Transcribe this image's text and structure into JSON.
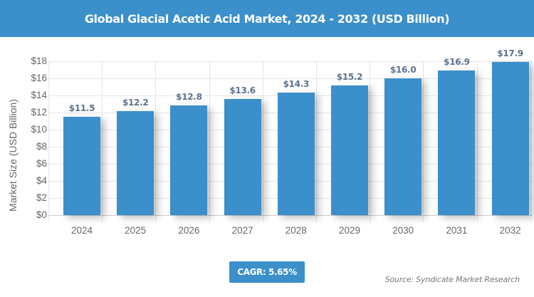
{
  "header": {
    "title": "Global Glacial Acetic Acid Market, 2024 - 2032 (USD Billion)"
  },
  "chart_data": {
    "type": "bar",
    "title": "Global Glacial Acetic Acid Market, 2024 - 2032 (USD Billion)",
    "xlabel": "",
    "ylabel": "Market Size (USD Billion)",
    "categories": [
      "2024",
      "2025",
      "2026",
      "2027",
      "2028",
      "2029",
      "2030",
      "2031",
      "2032"
    ],
    "values": [
      11.5,
      12.2,
      12.8,
      13.6,
      14.3,
      15.2,
      16.0,
      16.9,
      17.9
    ],
    "value_labels": [
      "$11.5",
      "$12.2",
      "$12.8",
      "$13.6",
      "$14.3",
      "$15.2",
      "$16.0",
      "$16.9",
      "$17.9"
    ],
    "ylim": [
      0,
      18
    ],
    "yticks": [
      "$0",
      "$2",
      "$4",
      "$6",
      "$8",
      "$10",
      "$12",
      "$14",
      "$16",
      "$18"
    ],
    "grid": true,
    "legend": null,
    "bar_color": "#3b8fcb"
  },
  "footer": {
    "cagr": "CAGR: 5.65%",
    "source": "Source: Syndicate Market Research"
  }
}
